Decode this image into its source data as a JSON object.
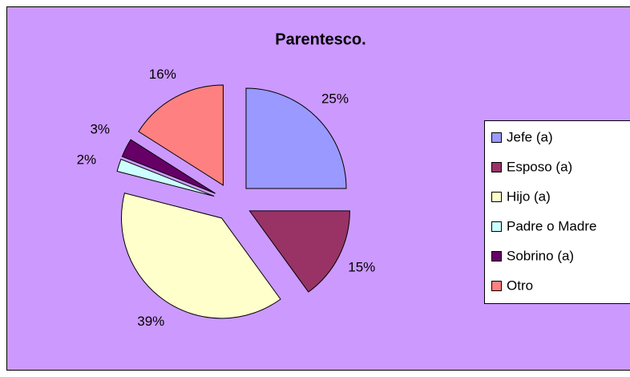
{
  "chart_data": {
    "type": "pie",
    "title": "Parentesco.",
    "categories": [
      "Jefe (a)",
      "Esposo (a)",
      "Hijo (a)",
      "Padre o Madre",
      "Sobrino (a)",
      "Otro"
    ],
    "values": [
      25,
      15,
      39,
      2,
      3,
      16
    ],
    "value_labels": [
      "25%",
      "15%",
      "39%",
      "2%",
      "3%",
      "16%"
    ],
    "colors": [
      "#9999ff",
      "#993366",
      "#ffffcc",
      "#ccffff",
      "#660066",
      "#ff8080"
    ],
    "legend": "right"
  }
}
